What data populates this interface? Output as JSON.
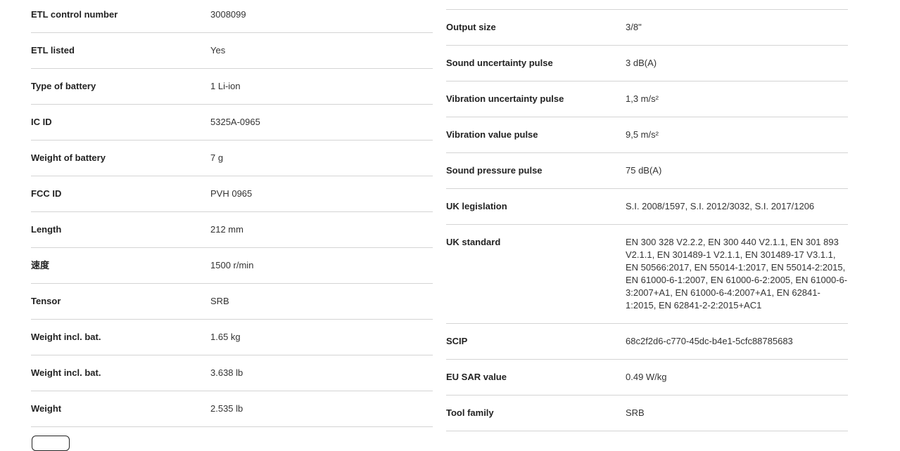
{
  "left": [
    {
      "label": "ETL control number",
      "value": "3008099"
    },
    {
      "label": "ETL listed",
      "value": "Yes"
    },
    {
      "label": "Type of battery",
      "value": "1 Li-ion"
    },
    {
      "label": "IC ID",
      "value": "5325A-0965"
    },
    {
      "label": "Weight of battery",
      "value": "7 g"
    },
    {
      "label": "FCC ID",
      "value": "PVH 0965"
    },
    {
      "label": "Length",
      "value": "212 mm"
    },
    {
      "label": "速度",
      "value": "1500 r/min"
    },
    {
      "label": "Tensor",
      "value": "SRB"
    },
    {
      "label": "Weight incl. bat.",
      "value": "1.65 kg"
    },
    {
      "label": "Weight incl. bat.",
      "value": "3.638 lb"
    },
    {
      "label": "Weight",
      "value": "2.535 lb"
    }
  ],
  "right": [
    {
      "label": "Output size",
      "value": "3/8\""
    },
    {
      "label": "Sound uncertainty pulse",
      "value": "3 dB(A)"
    },
    {
      "label": "Vibration uncertainty pulse",
      "value": "1,3 m/s²"
    },
    {
      "label": "Vibration value pulse",
      "value": "9,5 m/s²"
    },
    {
      "label": "Sound pressure pulse",
      "value": "75 dB(A)"
    },
    {
      "label": "UK legislation",
      "value": "S.I. 2008/1597, S.I. 2012/3032, S.I. 2017/1206"
    },
    {
      "label": "UK standard",
      "value": "EN 300 328 V2.2.2, EN 300 440 V2.1.1, EN 301 893 V2.1.1, EN 301489-1 V2.1.1, EN 301489-17 V3.1.1, EN 50566:2017, EN 55014-1:2017, EN 55014-2:2015, EN 61000-6-1:2007, EN 61000-6-2:2005, EN 61000-6-3:2007+A1, EN 61000-6-4:2007+A1, EN 62841-1:2015, EN 62841-2-2:2015+AC1"
    },
    {
      "label": "SCIP",
      "value": "68c2f2d6-c770-45dc-b4e1-5cfc88785683"
    },
    {
      "label": "EU SAR value",
      "value": "0.49 W/kg"
    },
    {
      "label": "Tool family",
      "value": "SRB"
    }
  ]
}
